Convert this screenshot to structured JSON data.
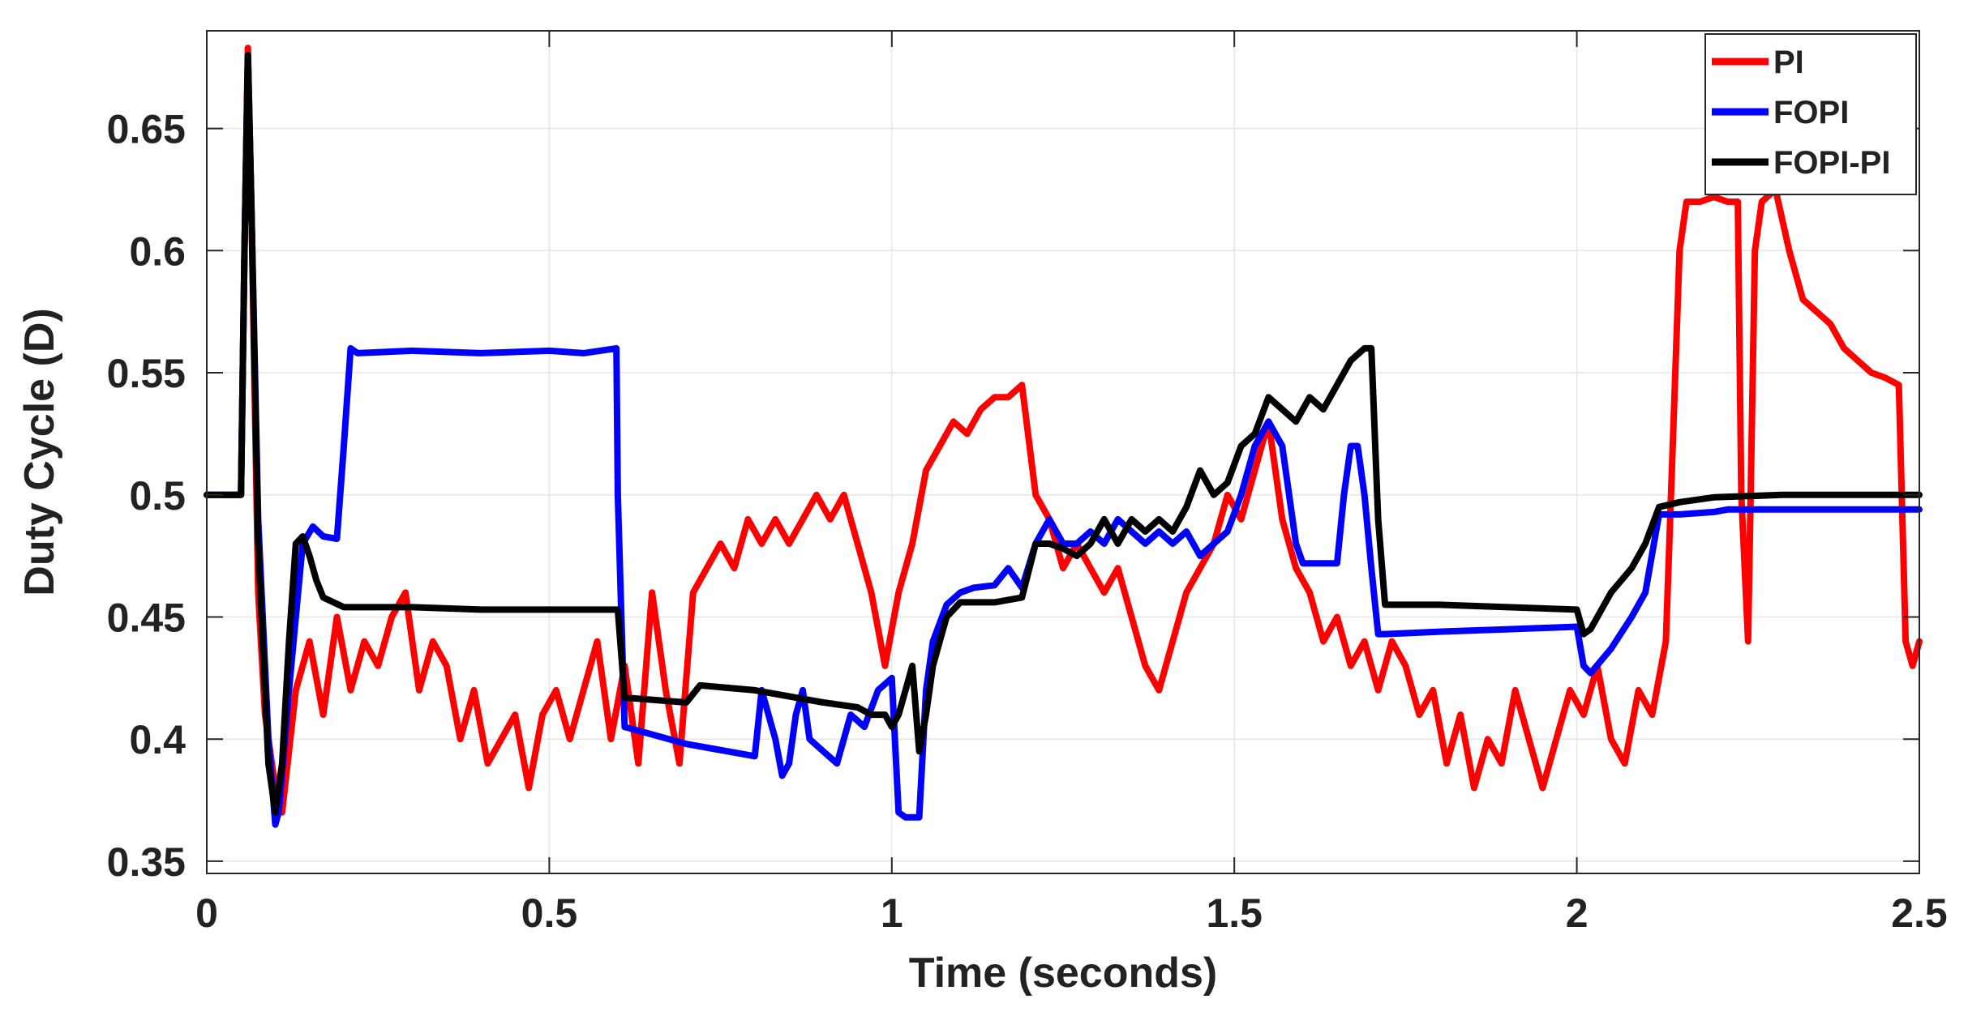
{
  "chart_data": {
    "type": "line",
    "title": "",
    "xlabel": "Time (seconds)",
    "ylabel": "Duty Cycle (D)",
    "xlim": [
      0,
      2.5
    ],
    "ylim": [
      0.345,
      0.69
    ],
    "xticks": [
      0,
      0.5,
      1,
      1.5,
      2,
      2.5
    ],
    "xtick_labels": [
      "0",
      "0.5",
      "1",
      "1.5",
      "2",
      "2.5"
    ],
    "yticks": [
      0.35,
      0.4,
      0.45,
      0.5,
      0.55,
      0.6,
      0.65
    ],
    "ytick_labels": [
      "0.35",
      "0.4",
      "0.45",
      "0.5",
      "0.55",
      "0.6",
      "0.65"
    ],
    "grid": true,
    "legend": "top-right",
    "series": [
      {
        "name": "PI",
        "color": "#ff0000",
        "x": [
          0,
          0.05,
          0.055,
          0.06,
          0.065,
          0.075,
          0.085,
          0.1,
          0.11,
          0.13,
          0.15,
          0.17,
          0.19,
          0.21,
          0.23,
          0.25,
          0.27,
          0.29,
          0.31,
          0.33,
          0.35,
          0.37,
          0.39,
          0.41,
          0.43,
          0.45,
          0.47,
          0.49,
          0.51,
          0.53,
          0.55,
          0.57,
          0.59,
          0.61,
          0.63,
          0.65,
          0.67,
          0.69,
          0.71,
          0.73,
          0.75,
          0.77,
          0.79,
          0.81,
          0.83,
          0.85,
          0.87,
          0.89,
          0.91,
          0.93,
          0.95,
          0.97,
          0.99,
          1.01,
          1.03,
          1.05,
          1.07,
          1.09,
          1.11,
          1.13,
          1.15,
          1.17,
          1.19,
          1.21,
          1.23,
          1.25,
          1.27,
          1.29,
          1.31,
          1.33,
          1.35,
          1.37,
          1.39,
          1.41,
          1.43,
          1.45,
          1.47,
          1.49,
          1.51,
          1.53,
          1.55,
          1.57,
          1.59,
          1.61,
          1.63,
          1.65,
          1.67,
          1.69,
          1.71,
          1.73,
          1.75,
          1.77,
          1.79,
          1.81,
          1.83,
          1.85,
          1.87,
          1.89,
          1.91,
          1.93,
          1.95,
          1.97,
          1.99,
          2.01,
          2.03,
          2.05,
          2.07,
          2.09,
          2.11,
          2.13,
          2.15,
          2.16,
          2.18,
          2.2,
          2.22,
          2.235,
          2.24,
          2.25,
          2.26,
          2.27,
          2.29,
          2.31,
          2.33,
          2.35,
          2.37,
          2.39,
          2.41,
          2.43,
          2.45,
          2.47,
          2.48,
          2.49,
          2.5
        ],
        "y": [
          0.5,
          0.5,
          0.6,
          0.683,
          0.62,
          0.46,
          0.41,
          0.38,
          0.37,
          0.42,
          0.44,
          0.41,
          0.45,
          0.42,
          0.44,
          0.43,
          0.45,
          0.46,
          0.42,
          0.44,
          0.43,
          0.4,
          0.42,
          0.39,
          0.4,
          0.41,
          0.38,
          0.41,
          0.42,
          0.4,
          0.42,
          0.44,
          0.4,
          0.43,
          0.39,
          0.46,
          0.42,
          0.39,
          0.46,
          0.47,
          0.48,
          0.47,
          0.49,
          0.48,
          0.49,
          0.48,
          0.49,
          0.5,
          0.49,
          0.5,
          0.48,
          0.46,
          0.43,
          0.46,
          0.48,
          0.51,
          0.52,
          0.53,
          0.525,
          0.535,
          0.54,
          0.54,
          0.545,
          0.5,
          0.49,
          0.47,
          0.48,
          0.47,
          0.46,
          0.47,
          0.45,
          0.43,
          0.42,
          0.44,
          0.46,
          0.47,
          0.48,
          0.5,
          0.49,
          0.51,
          0.53,
          0.49,
          0.47,
          0.46,
          0.44,
          0.45,
          0.43,
          0.44,
          0.42,
          0.44,
          0.43,
          0.41,
          0.42,
          0.39,
          0.41,
          0.38,
          0.4,
          0.39,
          0.42,
          0.4,
          0.38,
          0.4,
          0.42,
          0.41,
          0.43,
          0.4,
          0.39,
          0.42,
          0.41,
          0.44,
          0.6,
          0.62,
          0.62,
          0.622,
          0.62,
          0.62,
          0.5,
          0.44,
          0.6,
          0.62,
          0.625,
          0.6,
          0.58,
          0.575,
          0.57,
          0.56,
          0.555,
          0.55,
          0.548,
          0.545,
          0.44,
          0.43,
          0.44
        ]
      },
      {
        "name": "FOPI",
        "color": "#0000ff",
        "x": [
          0,
          0.05,
          0.055,
          0.06,
          0.065,
          0.075,
          0.09,
          0.1,
          0.105,
          0.12,
          0.14,
          0.155,
          0.17,
          0.19,
          0.2,
          0.21,
          0.22,
          0.3,
          0.4,
          0.5,
          0.55,
          0.598,
          0.6,
          0.61,
          0.7,
          0.8,
          0.81,
          0.82,
          0.83,
          0.84,
          0.85,
          0.86,
          0.87,
          0.88,
          0.9,
          0.92,
          0.94,
          0.96,
          0.98,
          1.0,
          1.01,
          1.02,
          1.04,
          1.05,
          1.06,
          1.08,
          1.1,
          1.12,
          1.15,
          1.17,
          1.19,
          1.21,
          1.23,
          1.25,
          1.27,
          1.29,
          1.31,
          1.33,
          1.35,
          1.37,
          1.39,
          1.41,
          1.43,
          1.45,
          1.47,
          1.49,
          1.51,
          1.53,
          1.55,
          1.57,
          1.58,
          1.59,
          1.6,
          1.61,
          1.63,
          1.65,
          1.66,
          1.67,
          1.68,
          1.69,
          1.7,
          1.71,
          1.72,
          1.8,
          1.9,
          2.0,
          2.01,
          2.02,
          2.05,
          2.08,
          2.1,
          2.12,
          2.15,
          2.2,
          2.22,
          2.3,
          2.4,
          2.5
        ],
        "y": [
          0.5,
          0.5,
          0.6,
          0.68,
          0.62,
          0.49,
          0.4,
          0.365,
          0.37,
          0.42,
          0.48,
          0.487,
          0.483,
          0.482,
          0.52,
          0.56,
          0.558,
          0.559,
          0.558,
          0.559,
          0.558,
          0.56,
          0.5,
          0.405,
          0.398,
          0.393,
          0.42,
          0.41,
          0.4,
          0.385,
          0.39,
          0.41,
          0.42,
          0.4,
          0.395,
          0.39,
          0.41,
          0.405,
          0.42,
          0.425,
          0.37,
          0.368,
          0.368,
          0.42,
          0.44,
          0.455,
          0.46,
          0.462,
          0.463,
          0.47,
          0.462,
          0.48,
          0.49,
          0.48,
          0.48,
          0.485,
          0.48,
          0.49,
          0.485,
          0.48,
          0.485,
          0.48,
          0.485,
          0.475,
          0.48,
          0.485,
          0.5,
          0.52,
          0.53,
          0.52,
          0.5,
          0.48,
          0.472,
          0.472,
          0.472,
          0.472,
          0.5,
          0.52,
          0.52,
          0.5,
          0.47,
          0.443,
          0.443,
          0.444,
          0.445,
          0.446,
          0.43,
          0.427,
          0.437,
          0.45,
          0.46,
          0.492,
          0.492,
          0.493,
          0.494,
          0.494,
          0.494,
          0.494
        ]
      },
      {
        "name": "FOPI-PI",
        "color": "#000000",
        "x": [
          0,
          0.05,
          0.055,
          0.06,
          0.065,
          0.075,
          0.09,
          0.1,
          0.11,
          0.12,
          0.13,
          0.14,
          0.15,
          0.16,
          0.17,
          0.2,
          0.3,
          0.4,
          0.5,
          0.6,
          0.61,
          0.7,
          0.72,
          0.8,
          0.9,
          0.95,
          0.97,
          0.99,
          1.0,
          1.01,
          1.02,
          1.03,
          1.04,
          1.05,
          1.06,
          1.07,
          1.08,
          1.1,
          1.15,
          1.19,
          1.21,
          1.23,
          1.25,
          1.27,
          1.29,
          1.31,
          1.33,
          1.35,
          1.37,
          1.39,
          1.41,
          1.43,
          1.45,
          1.47,
          1.49,
          1.51,
          1.53,
          1.55,
          1.57,
          1.59,
          1.61,
          1.63,
          1.65,
          1.67,
          1.69,
          1.7,
          1.71,
          1.72,
          1.8,
          1.9,
          2.0,
          2.01,
          2.02,
          2.05,
          2.08,
          2.1,
          2.12,
          2.15,
          2.2,
          2.3,
          2.4,
          2.5
        ],
        "y": [
          0.5,
          0.5,
          0.6,
          0.68,
          0.62,
          0.48,
          0.39,
          0.37,
          0.39,
          0.44,
          0.48,
          0.483,
          0.475,
          0.465,
          0.458,
          0.454,
          0.454,
          0.453,
          0.453,
          0.453,
          0.417,
          0.415,
          0.422,
          0.42,
          0.415,
          0.413,
          0.41,
          0.41,
          0.405,
          0.41,
          0.42,
          0.43,
          0.395,
          0.41,
          0.43,
          0.44,
          0.45,
          0.456,
          0.456,
          0.458,
          0.48,
          0.48,
          0.478,
          0.475,
          0.48,
          0.49,
          0.48,
          0.49,
          0.485,
          0.49,
          0.485,
          0.495,
          0.51,
          0.5,
          0.505,
          0.52,
          0.525,
          0.54,
          0.535,
          0.53,
          0.54,
          0.535,
          0.545,
          0.555,
          0.56,
          0.56,
          0.49,
          0.455,
          0.455,
          0.454,
          0.453,
          0.443,
          0.445,
          0.46,
          0.47,
          0.48,
          0.495,
          0.497,
          0.499,
          0.5,
          0.5,
          0.5
        ]
      }
    ]
  }
}
